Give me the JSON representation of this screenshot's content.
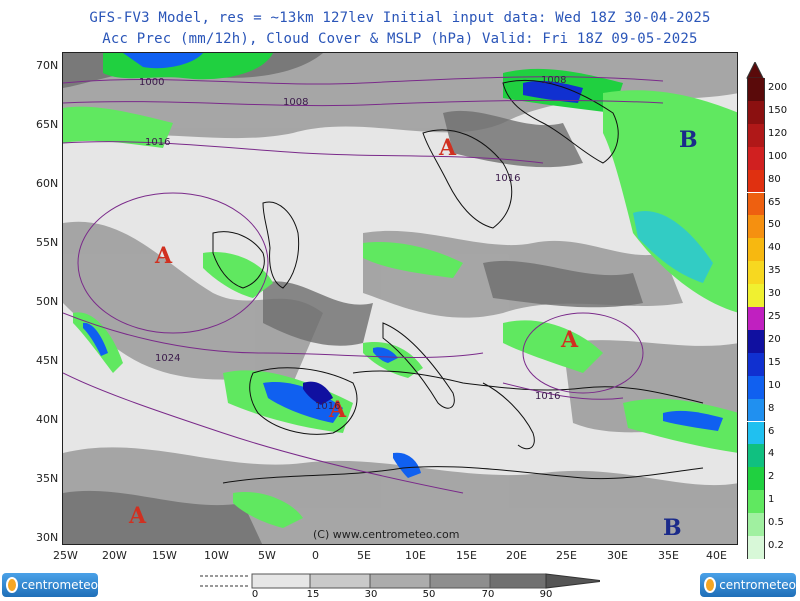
{
  "header": {
    "line1": "GFS-FV3 Model, res = ~13km 127lev   Initial input data: Wed 18Z 30-04-2025",
    "line2": "Acc Prec (mm/12h), Cloud Cover & MSLP (hPa)  Valid: Fri 18Z 09-05-2025"
  },
  "axes": {
    "lat_labels": [
      "70N",
      "65N",
      "60N",
      "55N",
      "50N",
      "45N",
      "40N",
      "35N",
      "30N"
    ],
    "lon_labels": [
      "25W",
      "20W",
      "15W",
      "10W",
      "5W",
      "0",
      "5E",
      "10E",
      "15E",
      "20E",
      "25E",
      "30E",
      "35E",
      "40E"
    ]
  },
  "pressure_centers": [
    {
      "type": "A",
      "color": "#d03020"
    },
    {
      "type": "A",
      "color": "#d03020"
    },
    {
      "type": "A",
      "color": "#d03020"
    },
    {
      "type": "A",
      "color": "#d03020"
    },
    {
      "type": "A",
      "color": "#d03020"
    },
    {
      "type": "B",
      "color": "#1a2a8a"
    },
    {
      "type": "B",
      "color": "#1a2a8a"
    }
  ],
  "isobars": [
    "1000",
    "1008",
    "1016",
    "1008",
    "1016",
    "1024",
    "1016",
    "1016"
  ],
  "watermark": "(C) www.centrometeo.com",
  "precip_legend": {
    "labels": [
      "200",
      "150",
      "120",
      "100",
      "80",
      "65",
      "50",
      "40",
      "35",
      "30",
      "25",
      "20",
      "15",
      "10",
      "8",
      "6",
      "4",
      "2",
      "1",
      "0.5",
      "0.2"
    ],
    "colors": [
      "#5a0a0a",
      "#8b1010",
      "#b01818",
      "#d02020",
      "#e03010",
      "#ee6010",
      "#f59010",
      "#f7b810",
      "#f7d820",
      "#f0f030",
      "#c020c0",
      "#1010a0",
      "#1030d0",
      "#1060f0",
      "#2090f0",
      "#20c0f0",
      "#10c080",
      "#20d040",
      "#60e860",
      "#a0f0a0",
      "#d8f8d8"
    ]
  },
  "cloud_legend": {
    "labels": [
      "0",
      "15",
      "30",
      "50",
      "70",
      "90"
    ]
  },
  "logos": [
    {
      "text": "centrometeo"
    },
    {
      "text": "centrometeo"
    }
  ]
}
